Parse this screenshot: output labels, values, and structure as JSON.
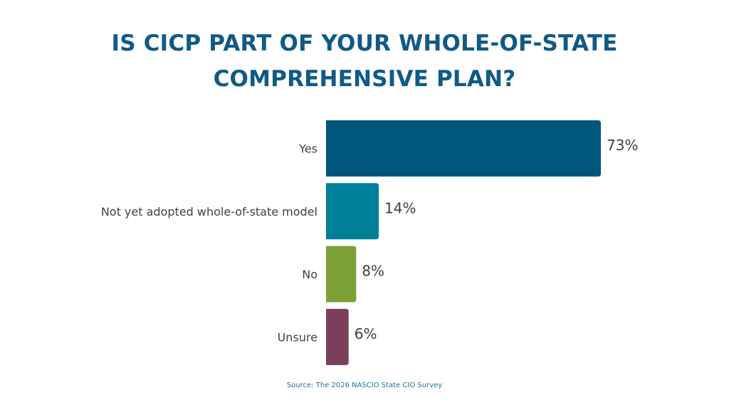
{
  "chart_data": {
    "type": "bar",
    "orientation": "horizontal",
    "title": "IS CICP PART OF YOUR WHOLE-OF-STATE COMPREHENSIVE PLAN?",
    "categories": [
      "Yes",
      "Not yet adopted whole-of-state model",
      "No",
      "Unsure"
    ],
    "values": [
      73,
      14,
      8,
      6
    ],
    "value_labels": [
      "73%",
      "14%",
      "8%",
      "6%"
    ],
    "colors": [
      "#00567f",
      "#007f99",
      "#7ba135",
      "#7b3f5d"
    ],
    "xlim": [
      0,
      73
    ],
    "grid": false,
    "legend": "none",
    "source": "Source: The 2026 NASCIO State CIO Survey"
  }
}
